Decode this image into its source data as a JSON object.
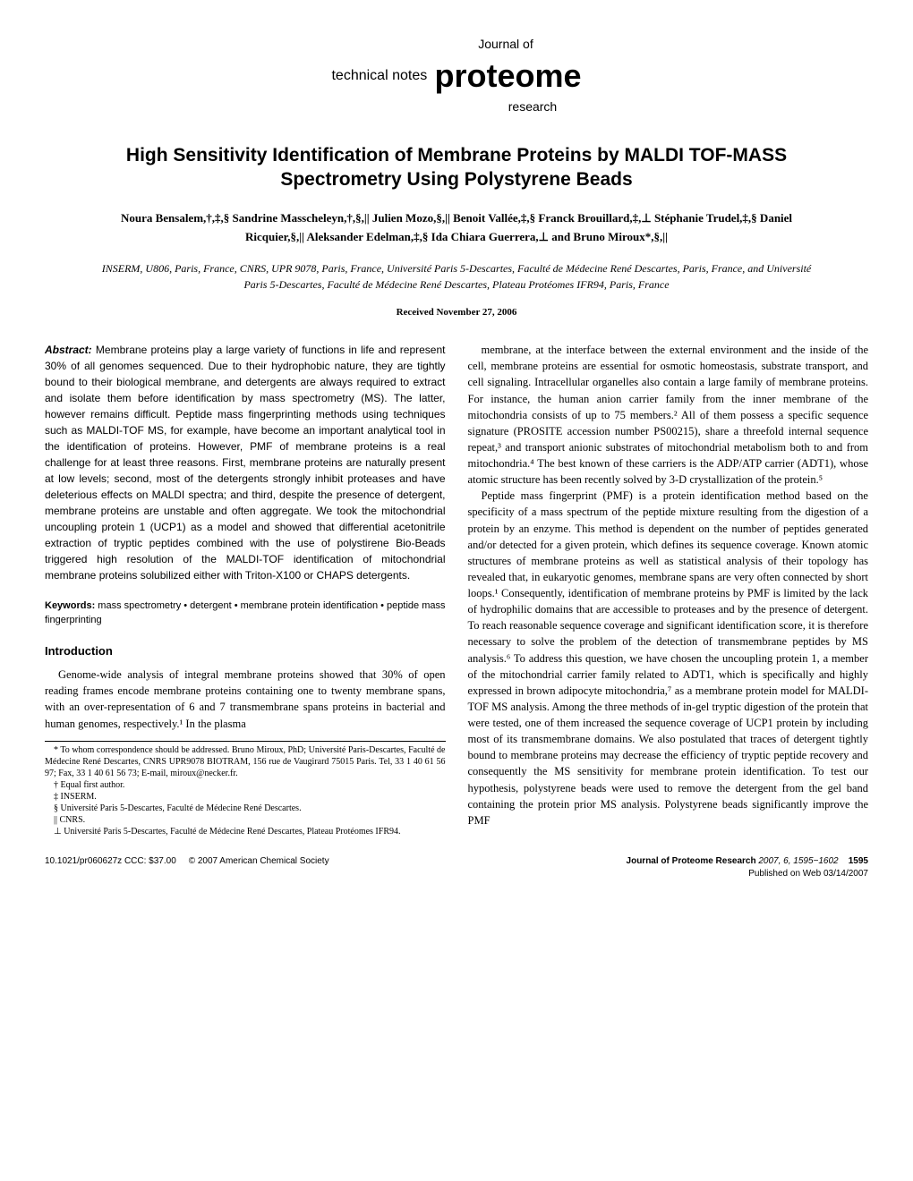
{
  "masthead": {
    "technical_notes": "technical notes",
    "journal_of": "Journal of",
    "proteome": "proteome",
    "research": "research"
  },
  "title": "High Sensitivity Identification of Membrane Proteins by MALDI TOF-MASS Spectrometry Using Polystyrene Beads",
  "authors": "Noura Bensalem,†,‡,§ Sandrine Masscheleyn,†,§,|| Julien Mozo,§,|| Benoit Vallée,‡,§ Franck Brouillard,‡,⊥ Stéphanie Trudel,‡,§ Daniel Ricquier,§,|| Aleksander Edelman,‡,§ Ida Chiara Guerrera,⊥ and Bruno Miroux*,§,||",
  "affiliations": "INSERM, U806, Paris, France, CNRS, UPR 9078, Paris, France, Université Paris 5-Descartes, Faculté de Médecine René Descartes, Paris, France, and Université Paris 5-Descartes, Faculté de Médecine René Descartes, Plateau Protéomes IFR94, Paris, France",
  "received": "Received November 27, 2006",
  "abstract_label": "Abstract:",
  "abstract": " Membrane proteins play a large variety of functions in life and represent 30% of all genomes sequenced. Due to their hydrophobic nature, they are tightly bound to their biological membrane, and detergents are always required to extract and isolate them before identification by mass spectrometry (MS). The latter, however remains difficult. Peptide mass fingerprinting methods using techniques such as MALDI-TOF MS, for example, have become an important analytical tool in the identification of proteins. However, PMF of membrane proteins is a real challenge for at least three reasons. First, membrane proteins are naturally present at low levels; second, most of the detergents strongly inhibit proteases and have deleterious effects on MALDI spectra; and third, despite the presence of detergent, membrane proteins are unstable and often aggregate. We took the mitochondrial uncoupling protein 1 (UCP1) as a model and showed that differential acetonitrile extraction of tryptic peptides combined with the use of polystirene Bio-Beads triggered high resolution of the MALDI-TOF identification of mitochondrial membrane proteins solubilized either with Triton-X100 or CHAPS detergents.",
  "keywords_label": "Keywords:",
  "keywords": " mass spectrometry • detergent • membrane protein identification • peptide mass fingerprinting",
  "intro_head": "Introduction",
  "intro_p1": "Genome-wide analysis of integral membrane proteins showed that 30% of open reading frames encode membrane proteins containing one to twenty membrane spans, with an over-representation of 6 and 7 transmembrane spans proteins in bacterial and human genomes, respectively.¹ In the plasma",
  "col2_p1": "membrane, at the interface between the external environment and the inside of the cell, membrane proteins are essential for osmotic homeostasis, substrate transport, and cell signaling. Intracellular organelles also contain a large family of membrane proteins. For instance, the human anion carrier family from the inner membrane of the mitochondria consists of up to 75 members.² All of them possess a specific sequence signature (PROSITE accession number PS00215), share a threefold internal sequence repeat,³ and transport anionic substrates of mitochondrial metabolism both to and from mitochondria.⁴ The best known of these carriers is the ADP/ATP carrier (ADT1), whose atomic structure has been recently solved by 3-D crystallization of the protein.⁵",
  "col2_p2": "Peptide mass fingerprint (PMF) is a protein identification method based on the specificity of a mass spectrum of the peptide mixture resulting from the digestion of a protein by an enzyme. This method is dependent on the number of peptides generated and/or detected for a given protein, which defines its sequence coverage. Known atomic structures of membrane proteins as well as statistical analysis of their topology has revealed that, in eukaryotic genomes, membrane spans are very often connected by short loops.¹ Consequently, identification of membrane proteins by PMF is limited by the lack of hydrophilic domains that are accessible to proteases and by the presence of detergent. To reach reasonable sequence coverage and significant identification score, it is therefore necessary to solve the problem of the detection of transmembrane peptides by MS analysis.⁶ To address this question, we have chosen the uncoupling protein 1, a member of the mitochondrial carrier family related to ADT1, which is specifically and highly expressed in brown adipocyte mitochondria,⁷ as a membrane protein model for MALDI-TOF MS analysis. Among the three methods of in-gel tryptic digestion of the protein that were tested, one of them increased the sequence coverage of UCP1 protein by including most of its transmembrane domains. We also postulated that traces of detergent tightly bound to membrane proteins may decrease the efficiency of tryptic peptide recovery and consequently the MS sensitivity for membrane protein identification. To test our hypothesis, polystyrene beads were used to remove the detergent from the gel band containing the protein prior MS analysis. Polystyrene beads significantly improve the PMF",
  "footnotes": {
    "corr": "* To whom correspondence should be addressed. Bruno Miroux, PhD; Université Paris-Descartes, Faculté de Médecine René Descartes, CNRS UPR9078 BIOTRAM, 156 rue de Vaugirard 75015 Paris. Tel, 33 1 40 61 56 97; Fax, 33 1 40 61 56 73; E-mail, miroux@necker.fr.",
    "equal": "† Equal first author.",
    "inserm": "‡ INSERM.",
    "univ": "§ Université Paris 5-Descartes, Faculté de Médecine René Descartes.",
    "cnrs": "|| CNRS.",
    "plateau": "⊥ Université Paris 5-Descartes, Faculté de Médecine René Descartes, Plateau Protéomes IFR94."
  },
  "footer": {
    "doi": "10.1021/pr060627z CCC: $37.00",
    "copyright": "© 2007 American Chemical Society",
    "journal": "Journal of Proteome Research",
    "issue": " 2007, 6, 1595−1602",
    "page": "1595",
    "published": "Published on Web 03/14/2007"
  }
}
